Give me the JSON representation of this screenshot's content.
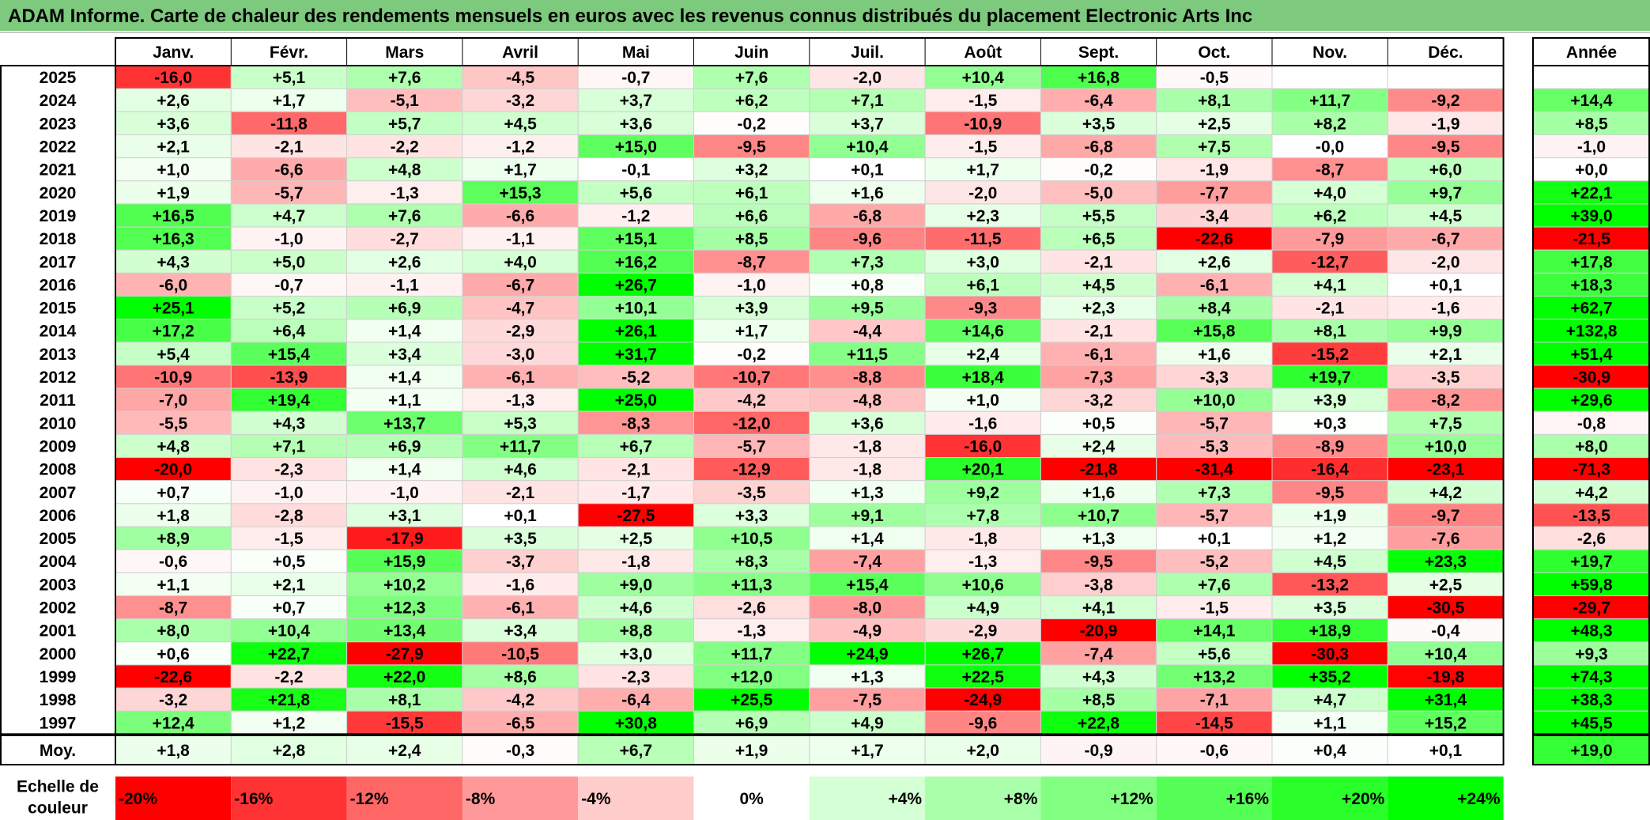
{
  "title": "ADAM Informe. Carte de chaleur des rendements mensuels en euros avec les revenus connus distribués du placement Electronic Arts Inc",
  "colors": {
    "title_bg": "#7dc97d",
    "max_red": "#ff0000",
    "max_green": "#00ff00",
    "neutral": "#ffffff"
  },
  "chart_data": {
    "type": "heatmap",
    "months": [
      "Janv.",
      "Févr.",
      "Mars",
      "Avril",
      "Mai",
      "Juin",
      "Juil.",
      "Août",
      "Sept.",
      "Oct.",
      "Nov.",
      "Déc."
    ],
    "year_header": "Année",
    "rows": [
      {
        "year": "2025",
        "months": [
          "-16,0",
          "+5,1",
          "+7,6",
          "-4,5",
          "-0,7",
          "+7,6",
          "-2,0",
          "+10,4",
          "+16,8",
          "-0,5",
          "",
          ""
        ],
        "annual": ""
      },
      {
        "year": "2024",
        "months": [
          "+2,6",
          "+1,7",
          "-5,1",
          "-3,2",
          "+3,7",
          "+6,2",
          "+7,1",
          "-1,5",
          "-6,4",
          "+8,1",
          "+11,7",
          "-9,2"
        ],
        "annual": "+14,4"
      },
      {
        "year": "2023",
        "months": [
          "+3,6",
          "-11,8",
          "+5,7",
          "+4,5",
          "+3,6",
          "-0,2",
          "+3,7",
          "-10,9",
          "+3,5",
          "+2,5",
          "+8,2",
          "-1,9"
        ],
        "annual": "+8,5"
      },
      {
        "year": "2022",
        "months": [
          "+2,1",
          "-2,1",
          "-2,2",
          "-1,2",
          "+15,0",
          "-9,5",
          "+10,4",
          "-1,5",
          "-6,8",
          "+7,5",
          "-0,0",
          "-9,5"
        ],
        "annual": "-1,0"
      },
      {
        "year": "2021",
        "months": [
          "+1,0",
          "-6,6",
          "+4,8",
          "+1,7",
          "-0,1",
          "+3,2",
          "+0,1",
          "+1,7",
          "-0,2",
          "-1,9",
          "-8,7",
          "+6,0"
        ],
        "annual": "+0,0"
      },
      {
        "year": "2020",
        "months": [
          "+1,9",
          "-5,7",
          "-1,3",
          "+15,3",
          "+5,6",
          "+6,1",
          "+1,6",
          "-2,0",
          "-5,0",
          "-7,7",
          "+4,0",
          "+9,7"
        ],
        "annual": "+22,1"
      },
      {
        "year": "2019",
        "months": [
          "+16,5",
          "+4,7",
          "+7,6",
          "-6,6",
          "-1,2",
          "+6,6",
          "-6,8",
          "+2,3",
          "+5,5",
          "-3,4",
          "+6,2",
          "+4,5"
        ],
        "annual": "+39,0"
      },
      {
        "year": "2018",
        "months": [
          "+16,3",
          "-1,0",
          "-2,7",
          "-1,1",
          "+15,1",
          "+8,5",
          "-9,6",
          "-11,5",
          "+6,5",
          "-22,6",
          "-7,9",
          "-6,7"
        ],
        "annual": "-21,5"
      },
      {
        "year": "2017",
        "months": [
          "+4,3",
          "+5,0",
          "+2,6",
          "+4,0",
          "+16,2",
          "-8,7",
          "+7,3",
          "+3,0",
          "-2,1",
          "+2,6",
          "-12,7",
          "-2,0"
        ],
        "annual": "+17,8"
      },
      {
        "year": "2016",
        "months": [
          "-6,0",
          "-0,7",
          "-1,1",
          "-6,7",
          "+26,7",
          "-1,0",
          "+0,8",
          "+6,1",
          "+4,5",
          "-6,1",
          "+4,1",
          "+0,1"
        ],
        "annual": "+18,3"
      },
      {
        "year": "2015",
        "months": [
          "+25,1",
          "+5,2",
          "+6,9",
          "-4,7",
          "+10,1",
          "+3,9",
          "+9,5",
          "-9,3",
          "+2,3",
          "+8,4",
          "-2,1",
          "-1,6"
        ],
        "annual": "+62,7"
      },
      {
        "year": "2014",
        "months": [
          "+17,2",
          "+6,4",
          "+1,4",
          "-2,9",
          "+26,1",
          "+1,7",
          "-4,4",
          "+14,6",
          "-2,1",
          "+15,8",
          "+8,1",
          "+9,9"
        ],
        "annual": "+132,8"
      },
      {
        "year": "2013",
        "months": [
          "+5,4",
          "+15,4",
          "+3,4",
          "-3,0",
          "+31,7",
          "-0,2",
          "+11,5",
          "+2,4",
          "-6,1",
          "+1,6",
          "-15,2",
          "+2,1"
        ],
        "annual": "+51,4"
      },
      {
        "year": "2012",
        "months": [
          "-10,9",
          "-13,9",
          "+1,4",
          "-6,1",
          "-5,2",
          "-10,7",
          "-8,8",
          "+18,4",
          "-7,3",
          "-3,3",
          "+19,7",
          "-3,5"
        ],
        "annual": "-30,9"
      },
      {
        "year": "2011",
        "months": [
          "-7,0",
          "+19,4",
          "+1,1",
          "-1,3",
          "+25,0",
          "-4,2",
          "-4,8",
          "+1,0",
          "-3,2",
          "+10,0",
          "+3,9",
          "-8,2"
        ],
        "annual": "+29,6"
      },
      {
        "year": "2010",
        "months": [
          "-5,5",
          "+4,3",
          "+13,7",
          "+5,3",
          "-8,3",
          "-12,0",
          "+3,6",
          "-1,6",
          "+0,5",
          "-5,7",
          "+0,3",
          "+7,5"
        ],
        "annual": "-0,8"
      },
      {
        "year": "2009",
        "months": [
          "+4,8",
          "+7,1",
          "+6,9",
          "+11,7",
          "+6,7",
          "-5,7",
          "-1,8",
          "-16,0",
          "+2,4",
          "-5,3",
          "-8,9",
          "+10,0"
        ],
        "annual": "+8,0"
      },
      {
        "year": "2008",
        "months": [
          "-20,0",
          "-2,3",
          "+1,4",
          "+4,6",
          "-2,1",
          "-12,9",
          "-1,8",
          "+20,1",
          "-21,8",
          "-31,4",
          "-16,4",
          "-23,1"
        ],
        "annual": "-71,3"
      },
      {
        "year": "2007",
        "months": [
          "+0,7",
          "-1,0",
          "-1,0",
          "-2,1",
          "-1,7",
          "-3,5",
          "+1,3",
          "+9,2",
          "+1,6",
          "+7,3",
          "-9,5",
          "+4,2"
        ],
        "annual": "+4,2"
      },
      {
        "year": "2006",
        "months": [
          "+1,8",
          "-2,8",
          "+3,1",
          "+0,1",
          "-27,5",
          "+3,3",
          "+9,1",
          "+7,8",
          "+10,7",
          "-5,7",
          "+1,9",
          "-9,7"
        ],
        "annual": "-13,5"
      },
      {
        "year": "2005",
        "months": [
          "+8,9",
          "-1,5",
          "-17,9",
          "+3,5",
          "+2,5",
          "+10,5",
          "+1,4",
          "-1,8",
          "+1,3",
          "+0,1",
          "+1,2",
          "-7,6"
        ],
        "annual": "-2,6"
      },
      {
        "year": "2004",
        "months": [
          "-0,6",
          "+0,5",
          "+15,9",
          "-3,7",
          "-1,8",
          "+8,3",
          "-7,4",
          "-1,3",
          "-9,5",
          "-5,2",
          "+4,5",
          "+23,3"
        ],
        "annual": "+19,7"
      },
      {
        "year": "2003",
        "months": [
          "+1,1",
          "+2,1",
          "+10,2",
          "-1,6",
          "+9,0",
          "+11,3",
          "+15,4",
          "+10,6",
          "-3,8",
          "+7,6",
          "-13,2",
          "+2,5"
        ],
        "annual": "+59,8"
      },
      {
        "year": "2002",
        "months": [
          "-8,7",
          "+0,7",
          "+12,3",
          "-6,1",
          "+4,6",
          "-2,6",
          "-8,0",
          "+4,9",
          "+4,1",
          "-1,5",
          "+3,5",
          "-30,5"
        ],
        "annual": "-29,7"
      },
      {
        "year": "2001",
        "months": [
          "+8,0",
          "+10,4",
          "+13,4",
          "+3,4",
          "+8,8",
          "-1,3",
          "-4,9",
          "-2,9",
          "-20,9",
          "+14,1",
          "+18,9",
          "-0,4"
        ],
        "annual": "+48,3"
      },
      {
        "year": "2000",
        "months": [
          "+0,6",
          "+22,7",
          "-27,9",
          "-10,5",
          "+3,0",
          "+11,7",
          "+24,9",
          "+26,7",
          "-7,4",
          "+5,6",
          "-30,3",
          "+10,4"
        ],
        "annual": "+9,3"
      },
      {
        "year": "1999",
        "months": [
          "-22,6",
          "-2,2",
          "+22,0",
          "+8,6",
          "-2,3",
          "+12,0",
          "+1,3",
          "+22,5",
          "+4,3",
          "+13,2",
          "+35,2",
          "-19,8"
        ],
        "annual": "+74,3"
      },
      {
        "year": "1998",
        "months": [
          "-3,2",
          "+21,8",
          "+8,1",
          "-4,2",
          "-6,4",
          "+25,5",
          "-7,5",
          "-24,9",
          "+8,5",
          "-7,1",
          "+4,7",
          "+31,4"
        ],
        "annual": "+38,3"
      },
      {
        "year": "1997",
        "months": [
          "+12,4",
          "+1,2",
          "-15,5",
          "-6,5",
          "+30,8",
          "+6,9",
          "+4,9",
          "-9,6",
          "+22,8",
          "-14,5",
          "+1,1",
          "+15,2"
        ],
        "annual": "+45,5"
      }
    ],
    "average": {
      "label": "Moy.",
      "months": [
        "+1,8",
        "+2,8",
        "+2,4",
        "-0,3",
        "+6,7",
        "+1,9",
        "+1,7",
        "+2,0",
        "-0,9",
        "-0,6",
        "+0,4",
        "+0,1"
      ],
      "annual": "+19,0"
    },
    "scale": {
      "label_line1": "Echelle de",
      "label_line2": "couleur",
      "steps": [
        "-20%",
        "-16%",
        "-12%",
        "-8%",
        "-4%",
        "0%",
        "+4%",
        "+8%",
        "+12%",
        "+16%",
        "+20%",
        "+24%"
      ],
      "values": [
        -20,
        -16,
        -12,
        -8,
        -4,
        0,
        4,
        8,
        12,
        16,
        20,
        24
      ]
    }
  }
}
